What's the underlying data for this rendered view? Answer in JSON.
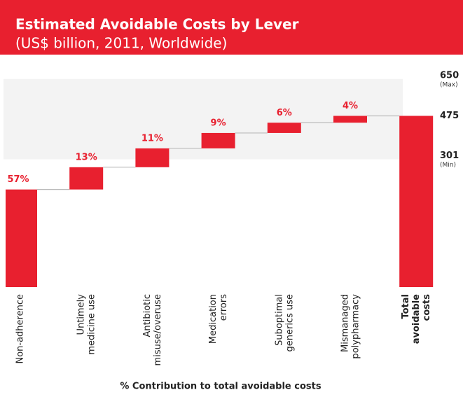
{
  "chart_data": {
    "type": "waterfall",
    "title": "Estimated Avoidable Costs by Lever",
    "subtitle": "(US$ billion, 2011, Worldwide)",
    "xlabel": "% Contribution to total avoidable costs",
    "categories": [
      "Non-adherence",
      "Untimely\nmedicine use",
      "Antibiotic\nmisuse/overuse",
      "Medication\nerrors",
      "Suboptimal\ngenerics use",
      "Mismanaged\npolypharmacy"
    ],
    "values": [
      57,
      13,
      11,
      9,
      6,
      4
    ],
    "value_labels": [
      "57%",
      "13%",
      "11%",
      "9%",
      "6%",
      "4%"
    ],
    "total_label": "Total\navoidable\ncosts",
    "color": "#e8202f",
    "ylim": [
      0,
      137
    ],
    "y2lim": [
      -270,
      750
    ],
    "y2ticks": [
      301,
      475,
      650
    ],
    "y2tick_sublabels": [
      "(Min)",
      null,
      "(Max)"
    ]
  }
}
